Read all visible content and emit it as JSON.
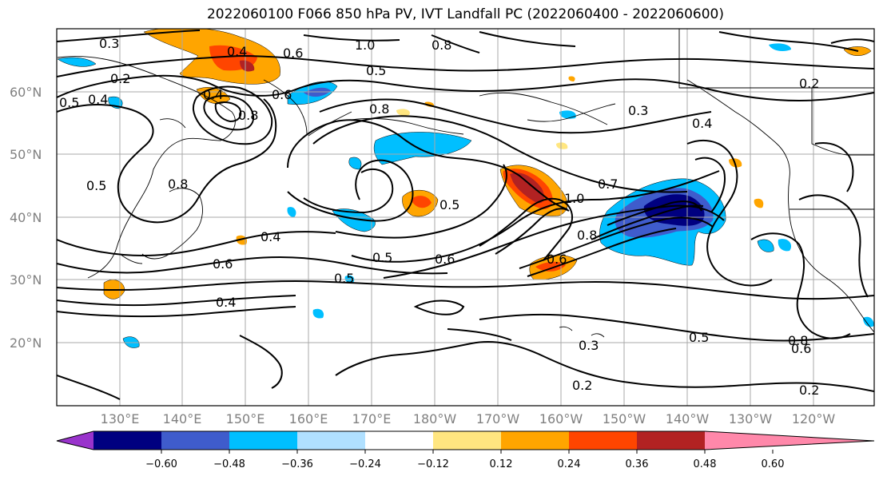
{
  "title": "2022060100 F066 850 hPa PV, IVT Landfall PC (2022060400 - 2022060600)",
  "lat_labels": [
    "60°N",
    "50°N",
    "40°N",
    "30°N",
    "20°N"
  ],
  "lon_labels": [
    "130°E",
    "140°E",
    "150°E",
    "160°E",
    "170°E",
    "180°W",
    "170°W",
    "160°W",
    "150°W",
    "140°W",
    "130°W",
    "120°W"
  ],
  "contour_labels": [
    "0.3",
    "0.4",
    "0.6",
    "1.0",
    "0.8",
    "0.5",
    "0.2",
    "0.8",
    "0.4",
    "0.6",
    "0.5",
    "0.4",
    "0.8",
    "0.5",
    "0.8",
    "0.3",
    "0.4",
    "0.5",
    "0.7",
    "1.0",
    "0.8",
    "0.6",
    "0.6",
    "0.5",
    "0.4",
    "0.6",
    "0.4",
    "0.5",
    "0.2",
    "0.3",
    "0.5",
    "0.8",
    "0.6",
    "0.2",
    "0.2"
  ],
  "colorbar": {
    "colors": [
      "#9933cc",
      "#000080",
      "#3f5ccc",
      "#00bfff",
      "#b0e0ff",
      "#ffffff",
      "#ffe680",
      "#ffa500",
      "#ff4500",
      "#b22222",
      "#ff88aa"
    ],
    "tick_labels": [
      "−0.60",
      "−0.48",
      "−0.36",
      "−0.24",
      "−0.12",
      "0.12",
      "0.24",
      "0.36",
      "0.48",
      "0.60"
    ]
  },
  "fill_colors": {
    "dark_red": "#b22222",
    "red": "#ff4500",
    "orange": "#ffa500",
    "yellow": "#ffe680",
    "navy": "#000080",
    "blue": "#3f5ccc",
    "sky": "#00bfff",
    "pale": "#b0e0ff"
  }
}
